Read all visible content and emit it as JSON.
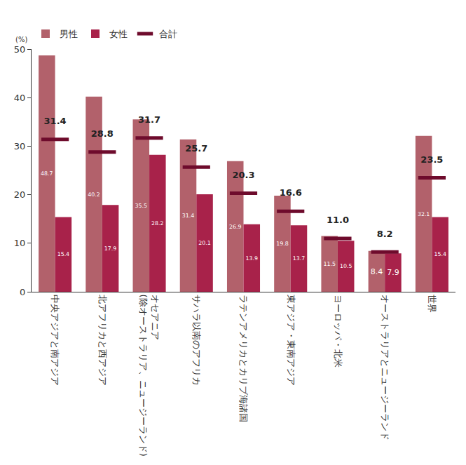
{
  "chart_data": {
    "type": "bar",
    "ylabel": "(%)",
    "categories": [
      "中央アジアと南アジア",
      "北アフリカと西アジア",
      "オセアニア\n(除オーストラリア、ニュージーランド)",
      "サハラ以南のアフリカ",
      "ラテンアメリカとカリブ海諸国",
      "東アジア・東南アジア",
      "ヨーロッパ・北米",
      "オーストラリアとニュージーランド",
      "世界"
    ],
    "series": [
      {
        "name": "男性",
        "color": "#b2616b",
        "values": [
          48.7,
          40.2,
          35.5,
          31.4,
          26.9,
          19.8,
          11.5,
          8.4,
          32.1
        ]
      },
      {
        "name": "女性",
        "color": "#a8224a",
        "values": [
          15.4,
          17.9,
          28.2,
          20.1,
          13.9,
          13.7,
          10.5,
          7.9,
          15.4
        ]
      },
      {
        "name": "合計",
        "type": "scatter",
        "marker": "line-ew",
        "color": "#6e0b2c",
        "values": [
          31.4,
          28.8,
          31.7,
          25.7,
          20.3,
          16.6,
          11.0,
          8.2,
          23.5
        ],
        "value_labels": [
          "31.4",
          "28.8",
          "31.7",
          "25.7",
          "20.3",
          "16.6",
          "11.0",
          "8.2",
          "23.5"
        ]
      }
    ],
    "ylim": [
      0,
      50
    ],
    "yticks": [
      0,
      10,
      20,
      30,
      40,
      50
    ],
    "grid": false,
    "legend": "top left",
    "data_labels": true
  }
}
